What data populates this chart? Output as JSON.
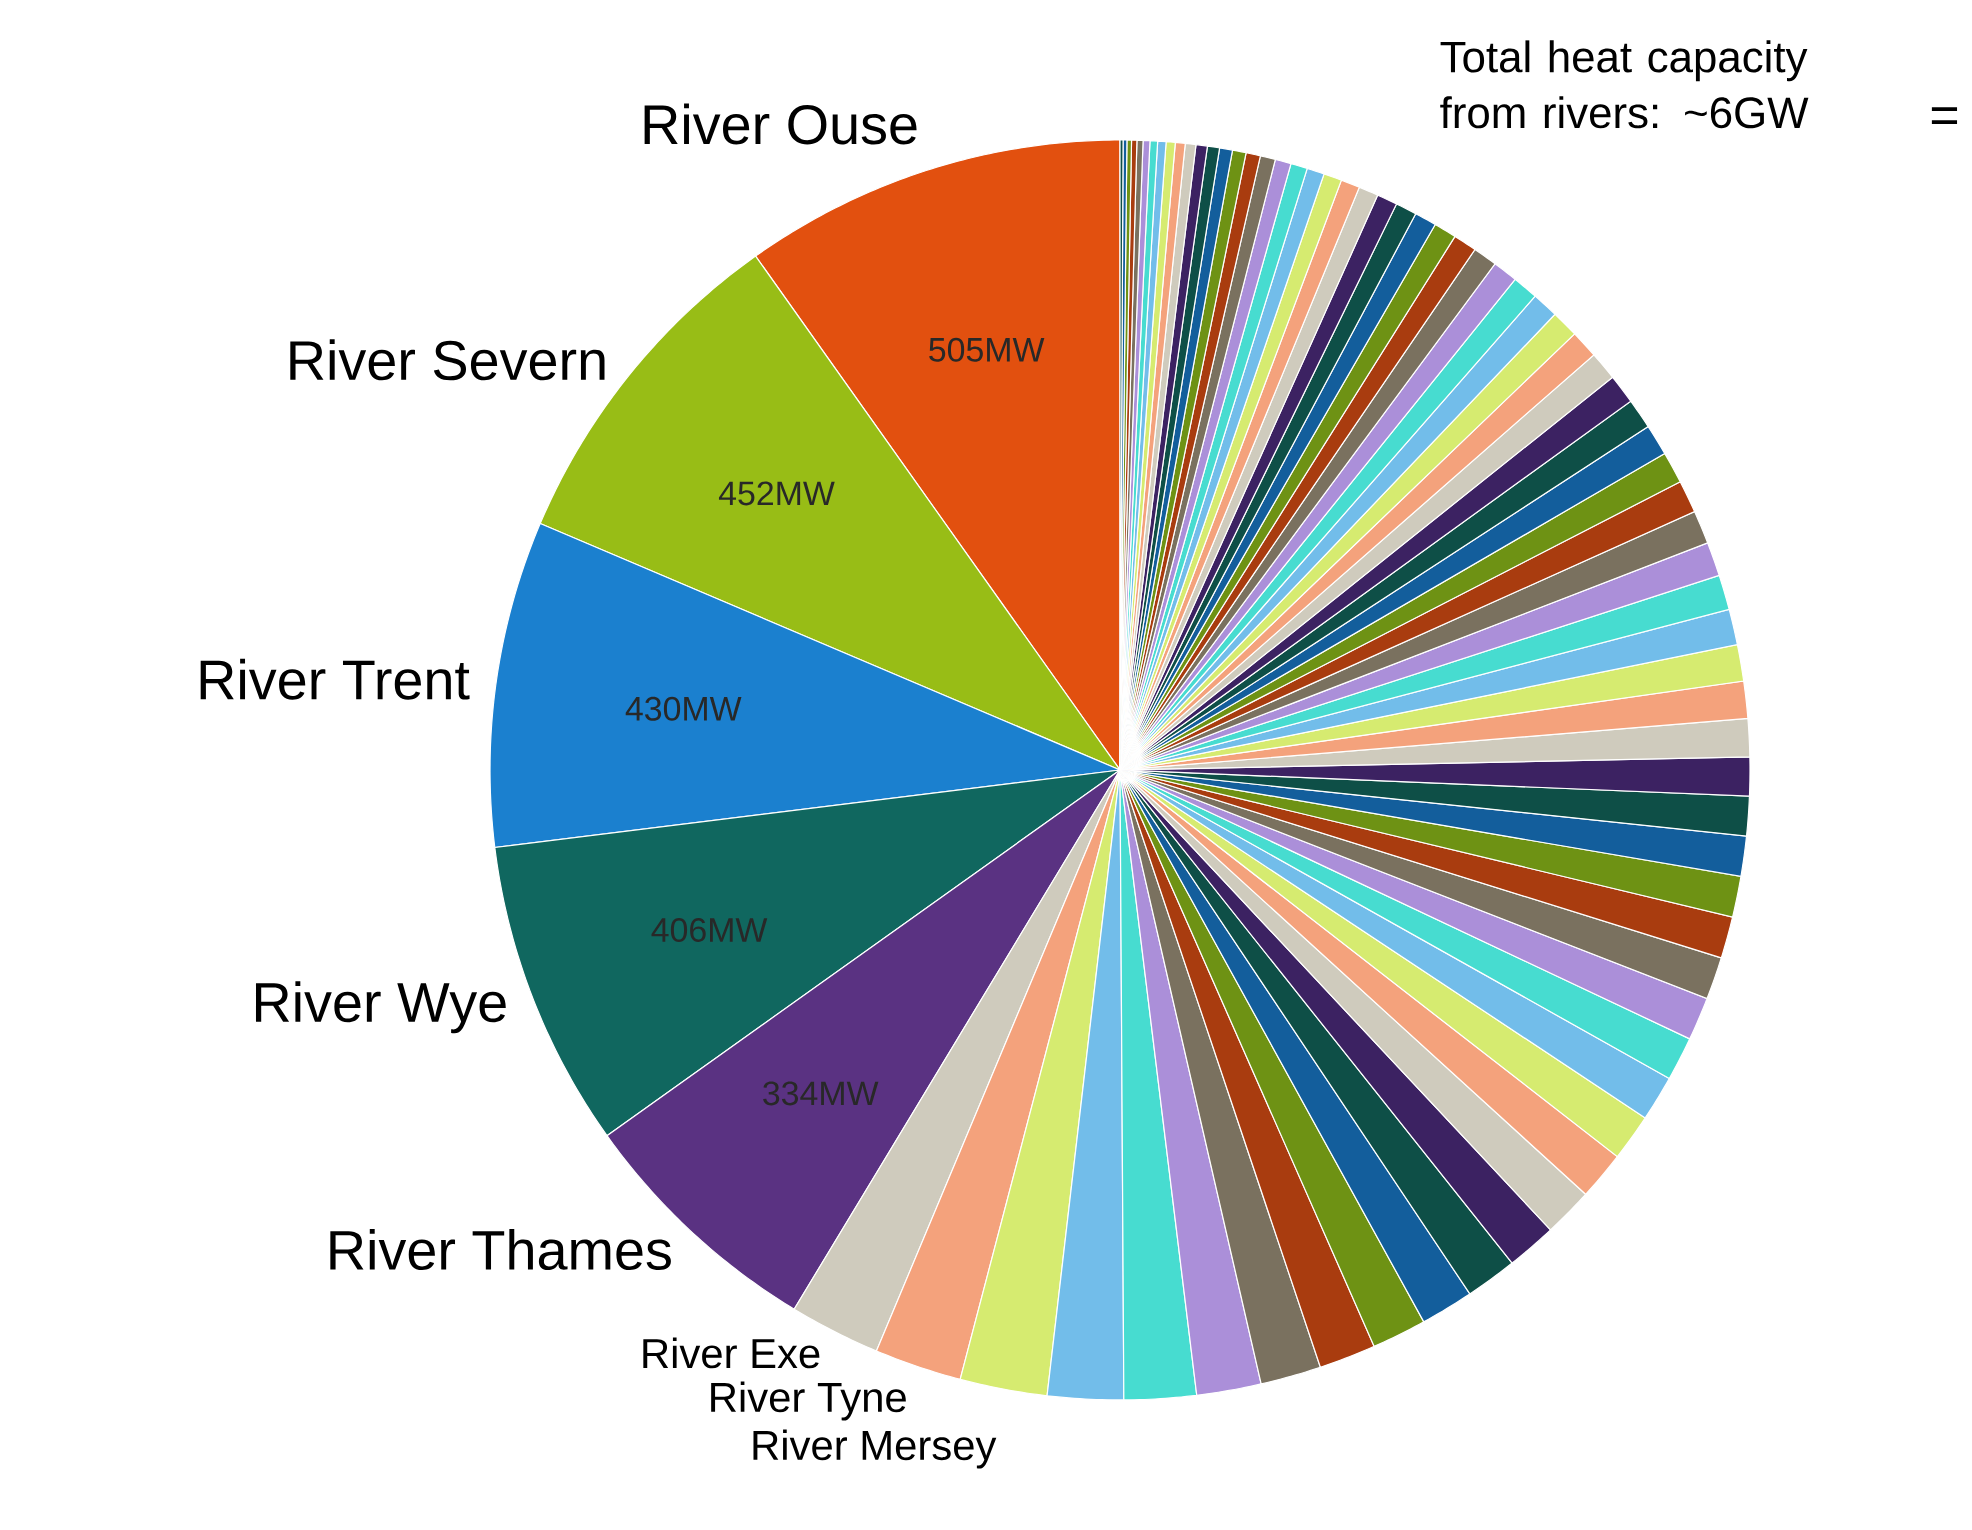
{
  "chart_data": {
    "type": "pie",
    "categories": [
      "River Ouse",
      "River Severn",
      "River Trent",
      "River Wye",
      "River Thames",
      "River Exe",
      "River Tyne",
      "River Mersey",
      null,
      null,
      null,
      null,
      null,
      null,
      null,
      null,
      null,
      null,
      null,
      null,
      null,
      null,
      null,
      null,
      null,
      null,
      null,
      null,
      null,
      null,
      null,
      null,
      null,
      null,
      null,
      null,
      null,
      null,
      null,
      null,
      null,
      null,
      null,
      null,
      null,
      null,
      null,
      null,
      null,
      null,
      null,
      null,
      null,
      null,
      null,
      null,
      null,
      null,
      null,
      null,
      null,
      null,
      null,
      null,
      null,
      null,
      null,
      null,
      null,
      null,
      null,
      null,
      null,
      null,
      null,
      null
    ],
    "values": [
      505,
      452,
      430,
      406,
      334,
      120,
      115,
      115,
      100,
      95,
      85,
      80,
      75,
      72,
      70,
      68,
      66,
      65,
      64,
      62,
      60,
      58,
      57,
      56,
      55,
      54,
      53,
      52,
      51,
      50,
      49,
      48,
      47,
      46,
      45,
      44,
      43,
      42,
      41,
      40,
      39,
      38,
      37,
      36,
      35,
      34,
      33,
      32,
      31,
      30,
      29,
      28,
      27,
      26,
      25,
      24,
      23,
      22,
      21,
      20,
      19,
      18,
      17,
      16,
      15,
      14,
      13,
      12,
      11,
      10,
      9,
      8,
      7,
      6,
      5,
      4
    ],
    "value_labels": [
      "505MW",
      "452MW",
      "430MW",
      "406MW",
      "334MW",
      null,
      null,
      null,
      null,
      null,
      null,
      null,
      null,
      null,
      null,
      null,
      null,
      null,
      null,
      null,
      null,
      null,
      null,
      null,
      null,
      null,
      null,
      null,
      null,
      null,
      null,
      null,
      null,
      null,
      null,
      null,
      null,
      null,
      null,
      null,
      null,
      null,
      null,
      null,
      null,
      null,
      null,
      null,
      null,
      null,
      null,
      null,
      null,
      null,
      null,
      null,
      null,
      null,
      null,
      null,
      null,
      null,
      null,
      null,
      null,
      null,
      null,
      null,
      null,
      null,
      null,
      null,
      null,
      null,
      null,
      null
    ],
    "colors": [
      "#e2500f",
      "#98bd16",
      "#1b80cf",
      "#10675f",
      "#5a3282",
      "#cfcbbd",
      "#f4a27c",
      "#d6eb70",
      "#72bdea",
      "#47dcd0",
      "#ab8fd9",
      "#7a715f",
      "#a93c0f",
      "#6e9214",
      "#135e9c",
      "#0e4f47",
      "#3c2262",
      "#cfcbbd",
      "#f4a27c",
      "#d6eb70",
      "#72bdea",
      "#47dcd0",
      "#ab8fd9",
      "#7a715f",
      "#a93c0f",
      "#6e9214",
      "#135e9c",
      "#0e4f47",
      "#3c2262",
      "#cfcbbd",
      "#f4a27c",
      "#d6eb70",
      "#72bdea",
      "#47dcd0",
      "#ab8fd9",
      "#7a715f",
      "#a93c0f",
      "#6e9214",
      "#135e9c",
      "#0e4f47",
      "#3c2262",
      "#cfcbbd",
      "#f4a27c",
      "#d6eb70",
      "#72bdea",
      "#47dcd0",
      "#ab8fd9",
      "#7a715f",
      "#a93c0f",
      "#6e9214",
      "#135e9c",
      "#0e4f47",
      "#3c2262",
      "#cfcbbd",
      "#f4a27c",
      "#d6eb70",
      "#72bdea",
      "#47dcd0",
      "#ab8fd9",
      "#7a715f",
      "#a93c0f",
      "#6e9214",
      "#135e9c",
      "#0e4f47",
      "#3c2262",
      "#cfcbbd",
      "#f4a27c",
      "#d6eb70",
      "#72bdea",
      "#47dcd0",
      "#ab8fd9",
      "#7a715f",
      "#a93c0f",
      "#6e9214",
      "#135e9c",
      "#0e4f47"
    ],
    "annotations": [
      "Total heat capacity from rivers: ~6GW",
      "="
    ]
  }
}
